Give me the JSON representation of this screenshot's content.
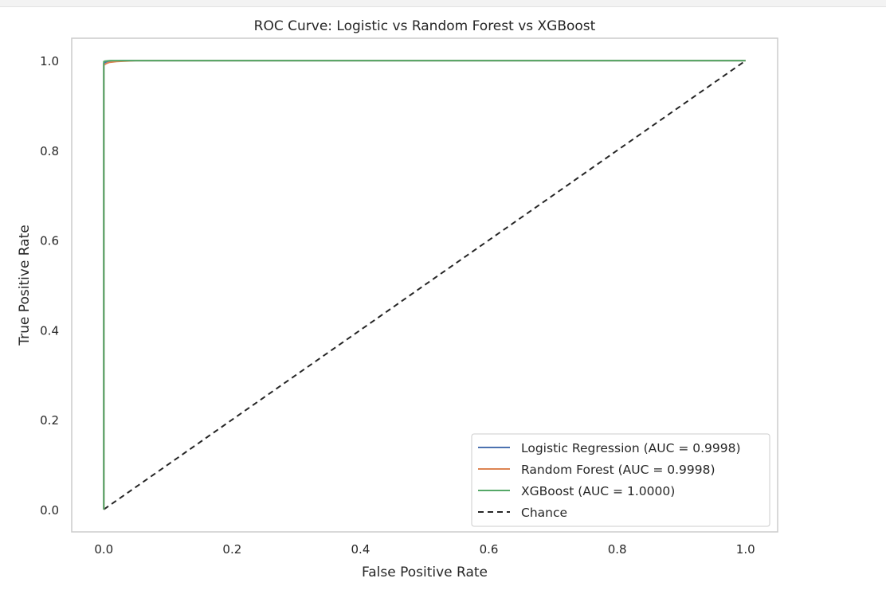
{
  "chart_data": {
    "type": "line",
    "title": "ROC Curve: Logistic vs Random Forest vs XGBoost",
    "xlabel": "False Positive Rate",
    "ylabel": "True Positive Rate",
    "xlim": [
      -0.05,
      1.05
    ],
    "ylim": [
      -0.05,
      1.05
    ],
    "xticks": [
      0.0,
      0.2,
      0.4,
      0.6,
      0.8,
      1.0
    ],
    "yticks": [
      0.0,
      0.2,
      0.4,
      0.6,
      0.8,
      1.0
    ],
    "xtick_labels": [
      "0.0",
      "0.2",
      "0.4",
      "0.6",
      "0.8",
      "1.0"
    ],
    "ytick_labels": [
      "0.0",
      "0.2",
      "0.4",
      "0.6",
      "0.8",
      "1.0"
    ],
    "grid": false,
    "legend_position": "lower-right",
    "series": [
      {
        "name": "Logistic Regression (AUC = 0.9998)",
        "color": "#4c72b0",
        "dash": "solid",
        "x": [
          0.0,
          0.0,
          0.002,
          0.005,
          0.01,
          0.03,
          1.0
        ],
        "y": [
          0.0,
          0.994,
          0.996,
          0.998,
          0.999,
          1.0,
          1.0
        ]
      },
      {
        "name": "Random Forest (AUC = 0.9998)",
        "color": "#dd8452",
        "dash": "solid",
        "x": [
          0.0,
          0.0,
          0.003,
          0.008,
          0.02,
          0.05,
          1.0
        ],
        "y": [
          0.0,
          0.99,
          0.993,
          0.996,
          0.998,
          1.0,
          1.0
        ]
      },
      {
        "name": "XGBoost (AUC = 1.0000)",
        "color": "#55a868",
        "dash": "solid",
        "x": [
          0.0,
          0.0,
          0.002,
          0.01,
          1.0
        ],
        "y": [
          0.0,
          0.998,
          0.999,
          1.0,
          1.0
        ]
      },
      {
        "name": "Chance",
        "color": "#262626",
        "dash": "dashed",
        "x": [
          0.0,
          1.0
        ],
        "y": [
          0.0,
          1.0
        ]
      }
    ]
  }
}
